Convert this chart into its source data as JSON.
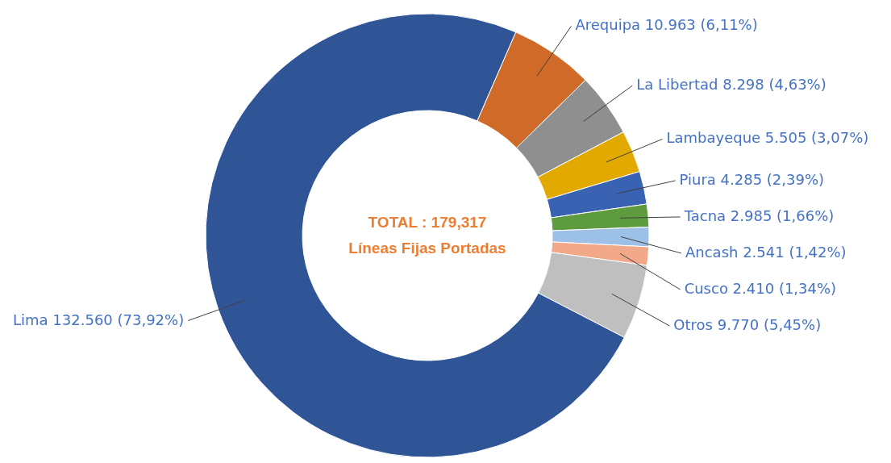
{
  "chart_data": {
    "type": "donut",
    "categories": [
      "Arequipa",
      "La Libertad",
      "Lambayeque",
      "Piura",
      "Tacna",
      "Ancash",
      "Cusco",
      "Otros",
      "Lima"
    ],
    "values": [
      6.11,
      4.63,
      3.07,
      2.39,
      1.66,
      1.42,
      1.34,
      5.45,
      73.92
    ],
    "colors": [
      "#d06a28",
      "#8f8f8f",
      "#e2aa00",
      "#3a62b2",
      "#5e9a3e",
      "#9dc0e6",
      "#f2a98a",
      "#bfbfbf",
      "#2f5597"
    ],
    "value_labels": [
      "10.963  (6,11%)",
      "8.298  (4,63%)",
      "5.505  (3,07%)",
      "4.285  (2,39%)",
      "2.985  (1,66%)",
      "2.541  (1,42%)",
      "2.410  (1,34%)",
      "9.770  (5,45%)",
      "132.560  (73,92%)"
    ],
    "annotations": [
      "TOTAL : 179,317",
      "Líneas Fijas Portadas"
    ]
  }
}
